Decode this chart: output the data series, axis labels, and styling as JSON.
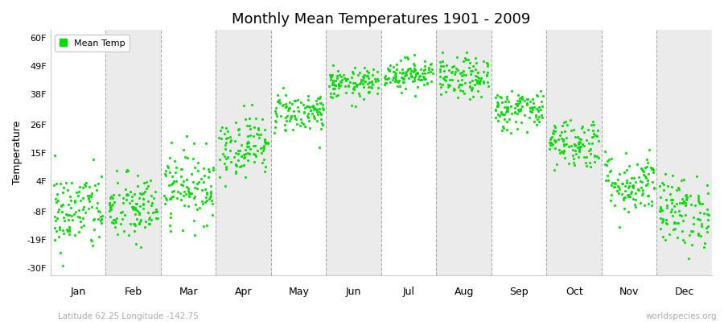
{
  "title": "Monthly Mean Temperatures 1901 - 2009",
  "ylabel": "Temperature",
  "yticks": [
    -30,
    -19,
    -8,
    4,
    15,
    26,
    38,
    49,
    60
  ],
  "ytick_labels": [
    "-30F",
    "-19F",
    "-8F",
    "4F",
    "15F",
    "26F",
    "38F",
    "49F",
    "60F"
  ],
  "ylim": [
    -33,
    63
  ],
  "months": [
    "Jan",
    "Feb",
    "Mar",
    "Apr",
    "May",
    "Jun",
    "Jul",
    "Aug",
    "Sep",
    "Oct",
    "Nov",
    "Dec"
  ],
  "dot_color": "#00dd00",
  "bg_color": "#ffffff",
  "plot_bg_color": "#ffffff",
  "alt_band_color": "#ebebeb",
  "footnote_left": "Latitude 62.25 Longitude -142.75",
  "footnote_right": "worldspecies.org",
  "legend_label": "Mean Temp",
  "num_years": 109,
  "monthly_means": [
    -8,
    -7,
    2,
    18,
    31,
    42,
    46,
    44,
    32,
    19,
    3,
    -8
  ],
  "monthly_stds": [
    8,
    7,
    7,
    6,
    4,
    3,
    3,
    4,
    4,
    5,
    6,
    7
  ]
}
